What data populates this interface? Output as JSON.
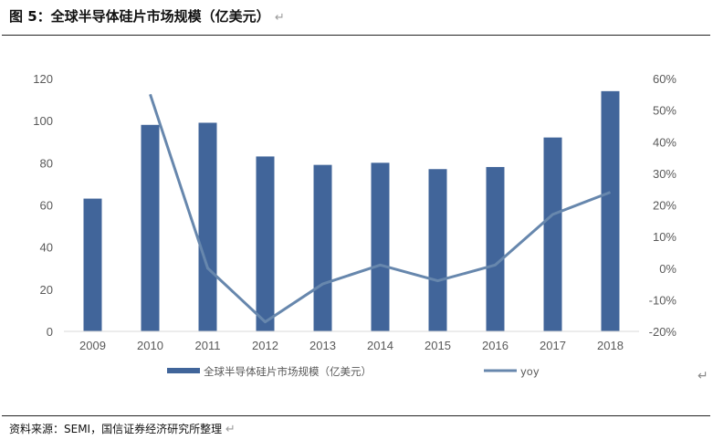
{
  "header": {
    "title": "图 5：全球半导体硅片市场规模（亿美元）",
    "return_mark": "↵"
  },
  "source_note": "资料来源：SEMI，国信证券经济研究所整理",
  "source_return_mark": "↵",
  "side_mark": "↵",
  "colors": {
    "bar": "#41659a",
    "line": "#6787ad",
    "text": "#595959"
  },
  "chart_data": {
    "type": "bar",
    "categories": [
      "2009",
      "2010",
      "2011",
      "2012",
      "2013",
      "2014",
      "2015",
      "2016",
      "2017",
      "2018"
    ],
    "series": [
      {
        "name": "全球半导体硅片市场规模（亿美元）",
        "type": "bar",
        "axis": "left",
        "values": [
          63,
          98,
          99,
          83,
          79,
          80,
          77,
          78,
          92,
          114
        ]
      },
      {
        "name": "yoy",
        "type": "line",
        "axis": "right",
        "values": [
          null,
          0.55,
          0.0,
          -0.17,
          -0.05,
          0.01,
          -0.04,
          0.01,
          0.17,
          0.24
        ]
      }
    ],
    "y_left": {
      "min": 0,
      "max": 120,
      "ticks": [
        "0",
        "20",
        "40",
        "60",
        "80",
        "100",
        "120"
      ]
    },
    "y_right": {
      "min": -0.2,
      "max": 0.6,
      "ticks": [
        "-20%",
        "-10%",
        "0%",
        "10%",
        "20%",
        "30%",
        "40%",
        "50%",
        "60%"
      ]
    },
    "legend_position": "bottom",
    "grid": false
  }
}
